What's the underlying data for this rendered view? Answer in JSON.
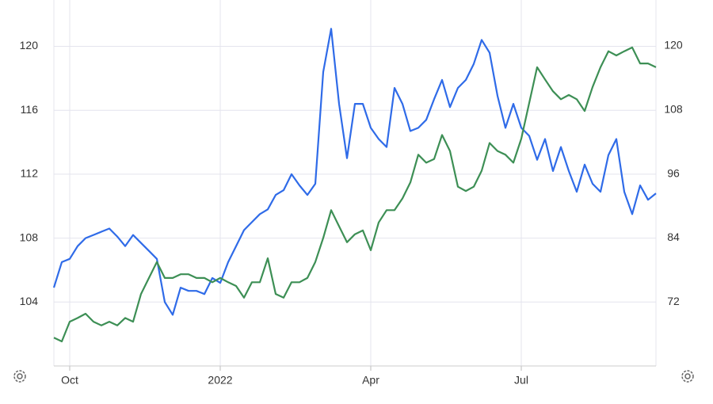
{
  "chart_data": {
    "type": "line",
    "categories": [
      null,
      null,
      "Oct",
      null,
      null,
      null,
      null,
      null,
      null,
      null,
      null,
      null,
      null,
      null,
      null,
      null,
      null,
      null,
      null,
      null,
      null,
      "2022",
      null,
      null,
      null,
      null,
      null,
      null,
      null,
      null,
      null,
      null,
      null,
      null,
      null,
      null,
      null,
      null,
      null,
      null,
      "Apr",
      null,
      null,
      null,
      null,
      null,
      null,
      null,
      null,
      null,
      null,
      null,
      null,
      null,
      null,
      null,
      null,
      null,
      null,
      "Jul",
      null,
      null,
      null,
      null,
      null,
      null,
      null,
      null,
      null,
      null,
      null,
      null,
      null,
      null,
      null,
      null,
      null
    ],
    "series": [
      {
        "color": "#2f6be8",
        "values": [
          104.9,
          106.5,
          106.7,
          107.5,
          108,
          108.2,
          108.4,
          108.6,
          108.1,
          107.5,
          108.2,
          107.7,
          107.2,
          106.7,
          104,
          103.2,
          104.9,
          104.7,
          104.7,
          104.5,
          105.5,
          105.2,
          106.5,
          107.5,
          108.5,
          109,
          109.5,
          109.8,
          110.7,
          111,
          112,
          111.3,
          110.7,
          111.4,
          118.4,
          121.1,
          116.4,
          113,
          116.4,
          116.4,
          114.9,
          114.2,
          113.7,
          117.4,
          116.4,
          114.7,
          114.9,
          115.4,
          116.7,
          117.9,
          116.2,
          117.4,
          117.9,
          118.9,
          120.4,
          119.6,
          116.9,
          114.9,
          116.4,
          114.9,
          114.4,
          112.9,
          114.2,
          112.2,
          113.7,
          112.2,
          110.9,
          112.6,
          111.4,
          110.9,
          113.2,
          114.2,
          110.9,
          109.5,
          111.3,
          110.4,
          110.8
        ]
      },
      {
        "color": "#3d8f55",
        "axis": "y2",
        "values": [
          65.3,
          64.6,
          68.3,
          69,
          69.8,
          68.3,
          67.6,
          68.3,
          67.6,
          69,
          68.3,
          73.5,
          76.5,
          79.5,
          76.5,
          76.5,
          77.2,
          77.2,
          76.5,
          76.5,
          75.7,
          76.5,
          75.7,
          75,
          72.8,
          75.7,
          75.7,
          80.2,
          73.5,
          72.8,
          75.7,
          75.7,
          76.5,
          79.5,
          84,
          89.2,
          86.2,
          83.2,
          84.7,
          85.4,
          81.7,
          86.9,
          89.2,
          89.2,
          91.4,
          94.4,
          99.6,
          98.1,
          98.8,
          103.3,
          100.3,
          93.6,
          92.8,
          93.6,
          96.6,
          101.8,
          100.3,
          99.6,
          98.1,
          102.6,
          109.3,
          116,
          113.7,
          111.5,
          110,
          110.8,
          110,
          107.8,
          112.3,
          116,
          119,
          118.2,
          119,
          119.7,
          116.7,
          116.7,
          116
        ]
      }
    ],
    "ylim": [
      100,
      122.9
    ],
    "yticks": [
      104,
      108,
      112,
      116,
      120
    ],
    "y2lim": [
      60,
      128.6
    ],
    "y2ticks": [
      72,
      84,
      96,
      108,
      120
    ],
    "grid": true
  }
}
